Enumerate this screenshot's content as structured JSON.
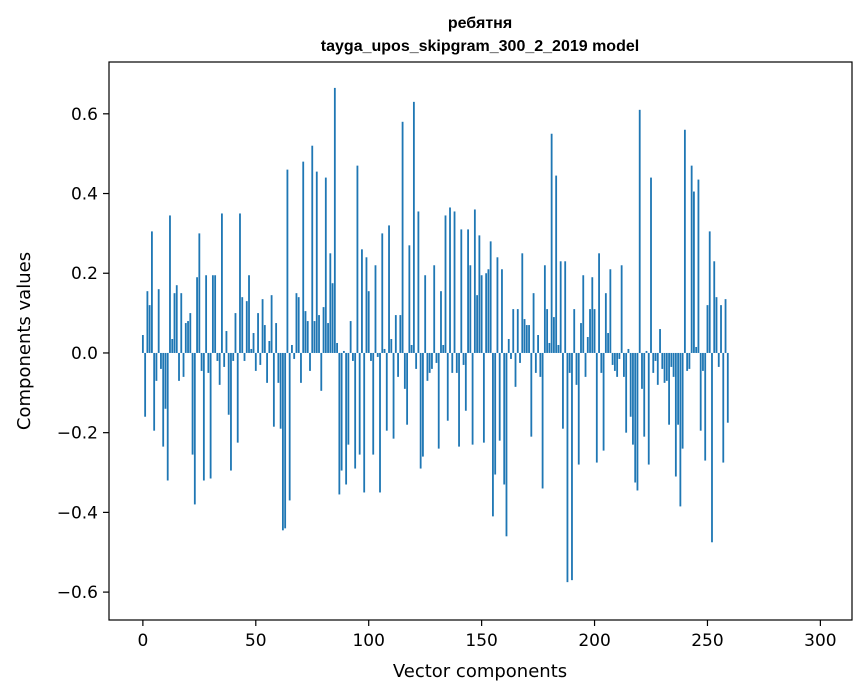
{
  "chart_data": {
    "type": "bar",
    "title_line1": "ребятня",
    "title_line2": "tayga_upos_skipgram_300_2_2019 model",
    "xlabel": "Vector components",
    "ylabel": "Components values",
    "xlim": [
      -15,
      314
    ],
    "ylim": [
      -0.67,
      0.73
    ],
    "xticks": [
      0,
      50,
      100,
      150,
      200,
      250,
      300
    ],
    "xtick_labels": [
      "0",
      "50",
      "100",
      "150",
      "200",
      "250",
      "300"
    ],
    "yticks": [
      -0.6,
      -0.4,
      -0.2,
      0.0,
      0.2,
      0.4,
      0.6
    ],
    "ytick_labels": [
      "−0.6",
      "−0.4",
      "−0.2",
      "0.0",
      "0.2",
      "0.4",
      "0.6"
    ],
    "bar_color": "#1f77b4",
    "values": [
      0.045,
      -0.16,
      0.155,
      0.12,
      0.305,
      -0.195,
      -0.07,
      0.16,
      -0.04,
      -0.235,
      -0.14,
      -0.32,
      0.345,
      0.035,
      0.15,
      0.17,
      -0.07,
      0.15,
      -0.06,
      0.075,
      0.08,
      0.1,
      -0.255,
      -0.38,
      0.19,
      0.3,
      -0.045,
      -0.32,
      0.195,
      -0.05,
      -0.315,
      0.195,
      0.195,
      -0.02,
      -0.08,
      0.35,
      -0.035,
      0.055,
      -0.155,
      -0.295,
      -0.02,
      0.1,
      -0.225,
      0.35,
      0.14,
      -0.02,
      0.13,
      0.195,
      0.01,
      0.05,
      -0.045,
      0.1,
      -0.03,
      0.135,
      0.07,
      -0.075,
      0.03,
      0.145,
      -0.185,
      0.075,
      -0.075,
      -0.19,
      -0.445,
      -0.44,
      0.46,
      -0.37,
      0.02,
      -0.015,
      0.15,
      0.14,
      -0.075,
      0.48,
      0.105,
      0.08,
      -0.045,
      0.52,
      0.08,
      0.455,
      0.095,
      -0.095,
      0.115,
      0.44,
      0.075,
      0.25,
      0.175,
      0.665,
      0.025,
      -0.355,
      -0.295,
      0.005,
      -0.33,
      -0.23,
      0.08,
      -0.02,
      -0.29,
      0.47,
      -0.255,
      0.26,
      -0.35,
      0.24,
      0.155,
      -0.02,
      -0.255,
      0.22,
      -0.01,
      -0.35,
      0.3,
      0.01,
      -0.195,
      0.32,
      0.035,
      -0.215,
      0.095,
      -0.06,
      0.095,
      0.58,
      -0.09,
      -0.18,
      0.27,
      0.02,
      0.63,
      -0.04,
      0.355,
      -0.29,
      -0.26,
      0.195,
      -0.07,
      -0.05,
      -0.04,
      0.22,
      -0.025,
      -0.24,
      0.155,
      0.02,
      0.345,
      -0.17,
      0.365,
      -0.05,
      0.355,
      -0.05,
      -0.235,
      0.31,
      -0.03,
      -0.145,
      0.31,
      0.22,
      -0.23,
      0.36,
      0.145,
      0.295,
      0.195,
      -0.225,
      0.2,
      0.21,
      0.28,
      -0.41,
      -0.305,
      0.24,
      -0.22,
      0.21,
      -0.33,
      -0.46,
      0.035,
      -0.015,
      0.11,
      -0.085,
      0.11,
      -0.025,
      0.25,
      0.085,
      0.07,
      0.07,
      -0.21,
      0.15,
      -0.05,
      0.045,
      -0.06,
      -0.34,
      0.22,
      0.11,
      0.025,
      0.55,
      0.09,
      0.445,
      0.02,
      0.23,
      -0.19,
      0.23,
      -0.575,
      -0.05,
      -0.57,
      0.11,
      -0.08,
      -0.28,
      0.075,
      0.195,
      -0.06,
      0.04,
      0.11,
      0.19,
      0.11,
      -0.275,
      0.25,
      -0.05,
      -0.245,
      0.15,
      0.05,
      0.21,
      -0.03,
      -0.045,
      -0.06,
      -0.015,
      0.22,
      -0.06,
      -0.2,
      0.01,
      -0.16,
      -0.23,
      -0.325,
      -0.345,
      0.61,
      -0.09,
      -0.21,
      0.005,
      -0.28,
      0.44,
      -0.05,
      -0.02,
      -0.08,
      0.06,
      -0.04,
      -0.075,
      -0.07,
      -0.18,
      -0.035,
      -0.06,
      -0.31,
      -0.18,
      -0.385,
      -0.24,
      0.56,
      -0.045,
      -0.04,
      0.47,
      0.405,
      0.015,
      0.435,
      -0.195,
      -0.045,
      -0.27,
      0.12,
      0.305,
      -0.475,
      0.23,
      0.14,
      -0.035,
      0.12,
      -0.275,
      0.135,
      -0.175
    ]
  }
}
